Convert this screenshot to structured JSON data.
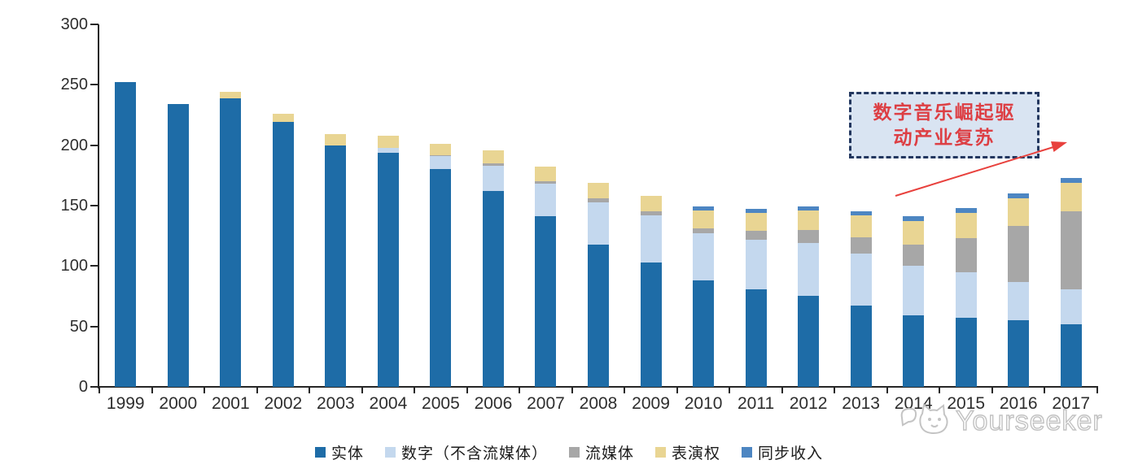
{
  "chart_data": {
    "type": "bar",
    "stacked": true,
    "title": "",
    "xlabel": "",
    "ylabel": "",
    "ylim": [
      0,
      300
    ],
    "yticks": [
      0,
      50,
      100,
      150,
      200,
      250,
      300
    ],
    "grid": false,
    "legend_position": "bottom",
    "categories": [
      "1999",
      "2000",
      "2001",
      "2002",
      "2003",
      "2004",
      "2005",
      "2006",
      "2007",
      "2008",
      "2009",
      "2010",
      "2011",
      "2012",
      "2013",
      "2014",
      "2015",
      "2016",
      "2017"
    ],
    "series": [
      {
        "name": "实体",
        "color": "#1e6ca7",
        "values": [
          252,
          234,
          239,
          219,
          200,
          194,
          180,
          162,
          141,
          118,
          103,
          88,
          81,
          75,
          67,
          59,
          57,
          55,
          52
        ]
      },
      {
        "name": "数字（不含流媒体）",
        "color": "#c4d8ee",
        "values": [
          0,
          0,
          0,
          0,
          0,
          4,
          11,
          21,
          27,
          35,
          39,
          39,
          41,
          44,
          43,
          41,
          38,
          32,
          29
        ]
      },
      {
        "name": "流媒体",
        "color": "#a7a7a7",
        "values": [
          0,
          0,
          0,
          0,
          0,
          0,
          1,
          2,
          2,
          3,
          3,
          4,
          7,
          11,
          14,
          18,
          28,
          46,
          64
        ]
      },
      {
        "name": "表演权",
        "color": "#e9d593",
        "values": [
          0,
          0,
          5,
          7,
          9,
          10,
          9,
          11,
          12,
          13,
          13,
          15,
          15,
          16,
          18,
          19,
          21,
          23,
          24
        ]
      },
      {
        "name": "同步收入",
        "color": "#4d86c2",
        "values": [
          0,
          0,
          0,
          0,
          0,
          0,
          0,
          0,
          0,
          0,
          0,
          3,
          3,
          3,
          3,
          4,
          4,
          4,
          4
        ]
      }
    ]
  },
  "annotation": {
    "line1": "数字音乐崛起驱",
    "line2": "动产业复苏",
    "text_color": "#dd3f44",
    "box_fill": "#d9e4f2",
    "box_border": "#23375f",
    "arrow_color": "#e8413d"
  },
  "watermark": {
    "text": "Yourseeker",
    "logo": "cat-logo-icon",
    "color": "#c2c2c2"
  },
  "axis": {
    "line_color": "#262626",
    "label_color": "#2e2e2e"
  }
}
